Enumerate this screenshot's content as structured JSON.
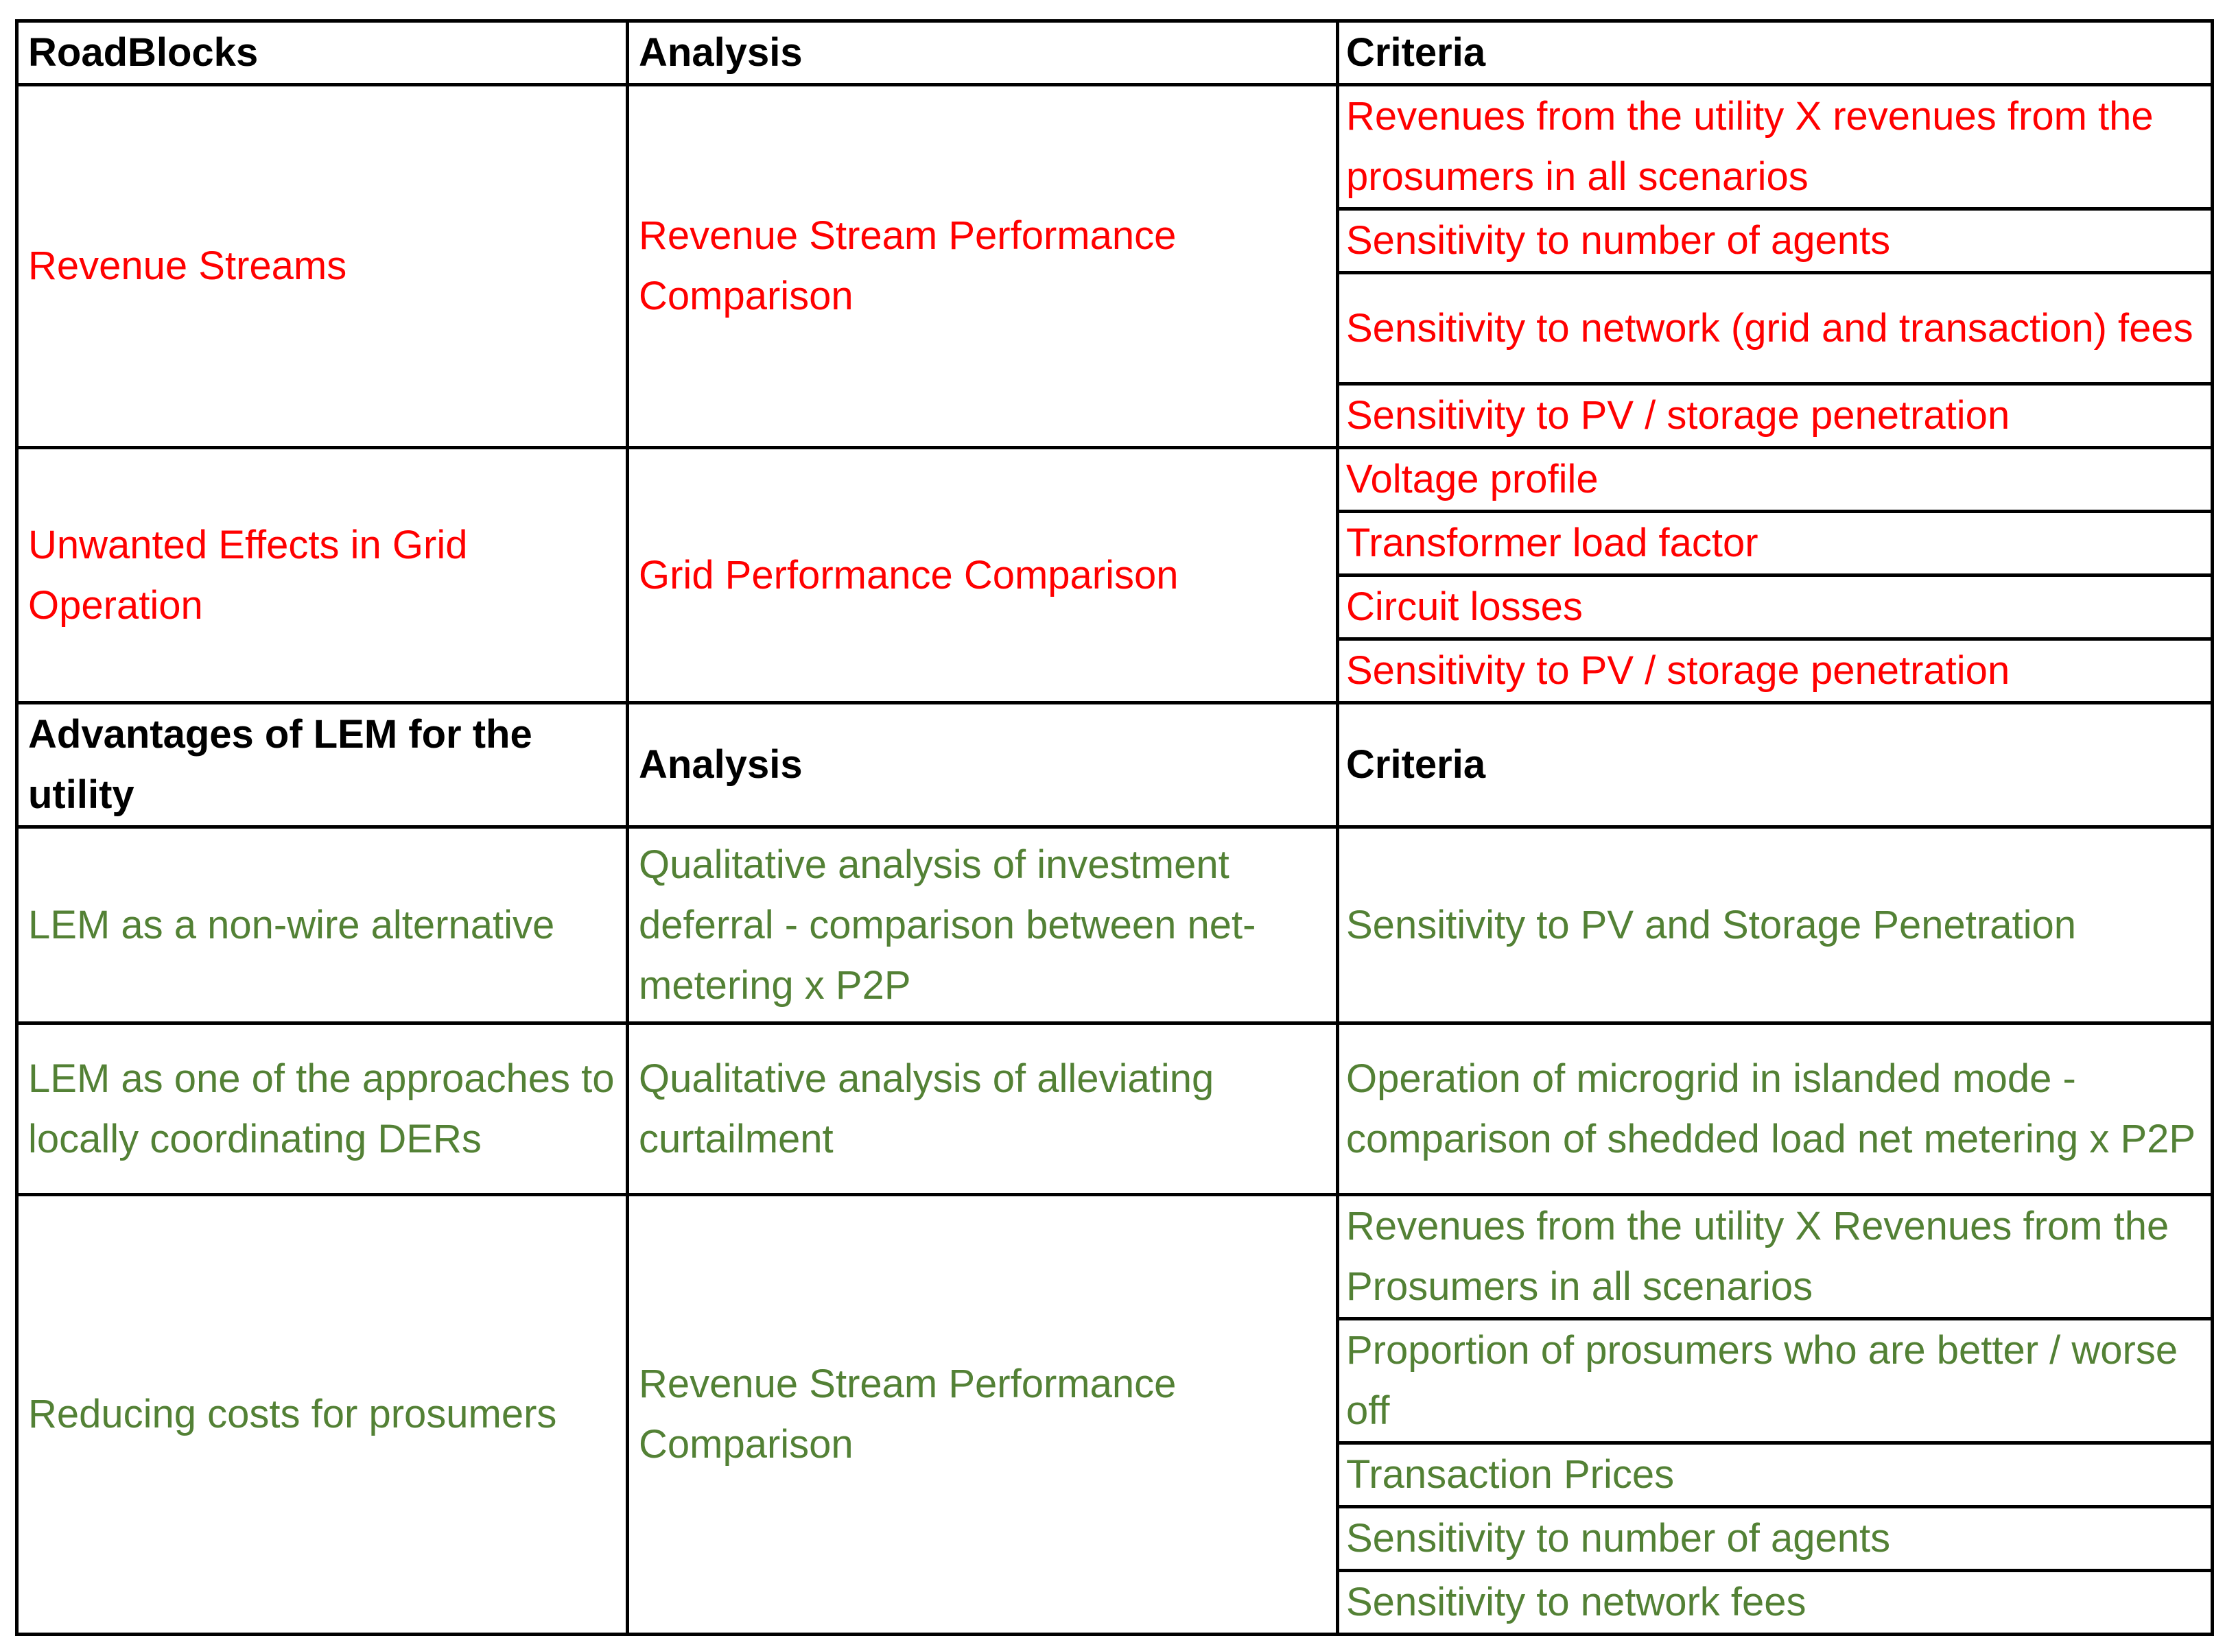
{
  "colors": {
    "roadblock_text": "#ff0000",
    "advantage_text": "#538135",
    "header_text": "#000000",
    "border": "#000000"
  },
  "section1": {
    "header": {
      "col1": "RoadBlocks",
      "col2": "Analysis",
      "col3": "Criteria"
    },
    "rows": [
      {
        "roadblock": "Revenue Streams",
        "analysis": "Revenue Stream Performance Comparison",
        "criteria": [
          "Revenues from the utility X revenues from the prosumers in all scenarios",
          "Sensitivity to number of agents",
          "Sensitivity to network (grid and transaction) fees",
          "Sensitivity to PV / storage penetration"
        ]
      },
      {
        "roadblock": "Unwanted Effects  in Grid Operation",
        "analysis": "Grid Performance Comparison",
        "criteria": [
          "Voltage profile",
          "Transformer load factor",
          "Circuit losses",
          "Sensitivity to PV / storage penetration"
        ]
      }
    ]
  },
  "section2": {
    "header": {
      "col1": "Advantages of LEM for the utility",
      "col2": "Analysis",
      "col3": "Criteria"
    },
    "rows": [
      {
        "advantage": "LEM as a non-wire alternative",
        "analysis": "Qualitative analysis of investment deferral - comparison between  net-metering x P2P",
        "criteria": [
          "Sensitivity to PV and Storage Penetration"
        ]
      },
      {
        "advantage": "LEM as one of the approaches to locally coordinating DERs",
        "analysis": "Qualitative analysis of alleviating curtailment",
        "criteria": [
          "Operation of microgrid in islanded mode - comparison of shedded load net metering x P2P"
        ]
      },
      {
        "advantage": "Reducing costs for prosumers",
        "analysis": "Revenue Stream Performance Comparison",
        "criteria": [
          "Revenues from the utility X Revenues from the Prosumers in all scenarios",
          "Proportion of prosumers who are better / worse off",
          "Transaction Prices",
          "Sensitivity to number of agents",
          "Sensitivity to network fees"
        ]
      }
    ]
  }
}
